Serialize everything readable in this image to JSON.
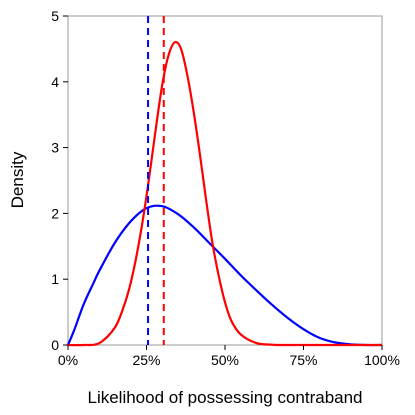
{
  "chart_data": {
    "type": "line",
    "title": "",
    "xlabel": "Likelihood of possessing contraband",
    "ylabel": "Density",
    "xlim": [
      0,
      1
    ],
    "ylim": [
      0,
      5
    ],
    "x_ticks": [
      {
        "value": 0,
        "label": "0%"
      },
      {
        "value": 0.25,
        "label": "25%"
      },
      {
        "value": 0.5,
        "label": "50%"
      },
      {
        "value": 0.75,
        "label": "75%"
      },
      {
        "value": 1,
        "label": "100%"
      }
    ],
    "y_ticks": [
      {
        "value": 0,
        "label": "0"
      },
      {
        "value": 1,
        "label": "1"
      },
      {
        "value": 2,
        "label": "2"
      },
      {
        "value": 3,
        "label": "3"
      },
      {
        "value": 4,
        "label": "4"
      },
      {
        "value": 5,
        "label": "5"
      }
    ],
    "grid": false,
    "legend": "none",
    "series": [
      {
        "color": "#0000ff",
        "x": [
          0,
          0.02,
          0.05,
          0.08,
          0.1,
          0.15,
          0.2,
          0.25,
          0.3,
          0.35,
          0.4,
          0.45,
          0.5,
          0.55,
          0.6,
          0.65,
          0.7,
          0.75,
          0.8,
          0.85,
          0.9,
          0.95,
          1.0
        ],
        "values": [
          0,
          0.23,
          0.62,
          0.93,
          1.13,
          1.56,
          1.88,
          2.08,
          2.11,
          1.99,
          1.79,
          1.55,
          1.31,
          1.06,
          0.83,
          0.61,
          0.41,
          0.24,
          0.11,
          0.04,
          0.01,
          0.0,
          0
        ]
      },
      {
        "color": "#ff0000",
        "x": [
          0,
          0.05,
          0.1,
          0.15,
          0.18,
          0.2,
          0.22,
          0.24,
          0.26,
          0.28,
          0.3,
          0.32,
          0.34,
          0.36,
          0.38,
          0.4,
          0.42,
          0.44,
          0.46,
          0.48,
          0.5,
          0.52,
          0.55,
          0.6,
          0.65,
          0.7,
          1.0
        ],
        "values": [
          0,
          0.0,
          0.03,
          0.27,
          0.62,
          0.95,
          1.4,
          1.95,
          2.6,
          3.3,
          3.95,
          4.4,
          4.6,
          4.5,
          4.1,
          3.55,
          2.9,
          2.2,
          1.55,
          1.05,
          0.65,
          0.37,
          0.16,
          0.03,
          0.005,
          0,
          0
        ]
      }
    ],
    "vlines": [
      {
        "x": 0.255,
        "color": "#0000ff",
        "style": "dashed"
      },
      {
        "x": 0.305,
        "color": "#ff0000",
        "style": "dashed"
      }
    ]
  }
}
